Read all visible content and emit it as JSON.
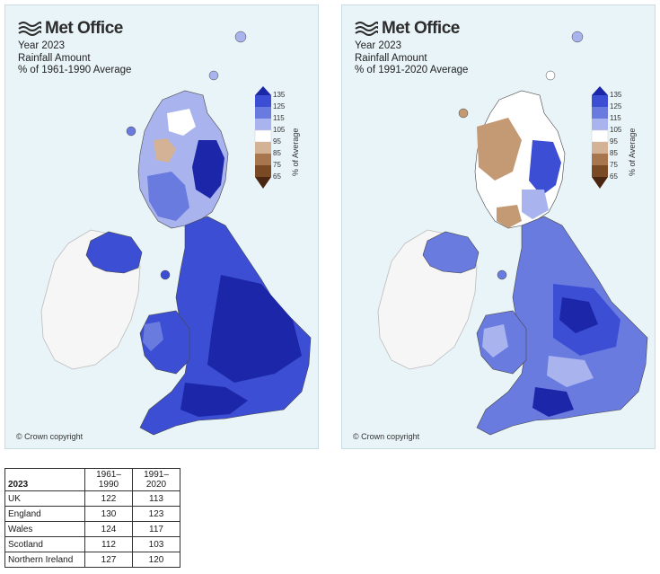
{
  "maps": [
    {
      "brand": "Met Office",
      "title_lines": [
        "Year 2023",
        "Rainfall Amount",
        "% of 1961-1990 Average"
      ],
      "copyright": "© Crown copyright"
    },
    {
      "brand": "Met Office",
      "title_lines": [
        "Year 2023",
        "Rainfall Amount",
        "% of 1991-2020 Average"
      ],
      "copyright": "© Crown copyright"
    }
  ],
  "legend": {
    "title": "% of Average",
    "ticks": [
      "135",
      "125",
      "115",
      "105",
      "95",
      "85",
      "75",
      "65"
    ],
    "colors": {
      "above_135": "#1b27a8",
      "125_135": "#3c4fd4",
      "115_125": "#6a7be0",
      "105_115": "#a9b4ee",
      "95_105": "#ffffff",
      "85_95": "#d3b295",
      "75_85": "#a7764f",
      "65_75": "#7a4a25",
      "below_65": "#4a2610"
    },
    "land_uncovered": "#f6f6f6",
    "sea": "#e9f4f8"
  },
  "table": {
    "header_label": "2023",
    "columns": [
      "1961–\n1990",
      "1991–\n2020"
    ],
    "rows": [
      {
        "region": "UK",
        "v1": "122",
        "v2": "113"
      },
      {
        "region": "England",
        "v1": "130",
        "v2": "123"
      },
      {
        "region": "Wales",
        "v1": "124",
        "v2": "117"
      },
      {
        "region": "Scotland",
        "v1": "112",
        "v2": "103"
      },
      {
        "region": "Northern Ireland",
        "v1": "127",
        "v2": "120"
      }
    ]
  }
}
